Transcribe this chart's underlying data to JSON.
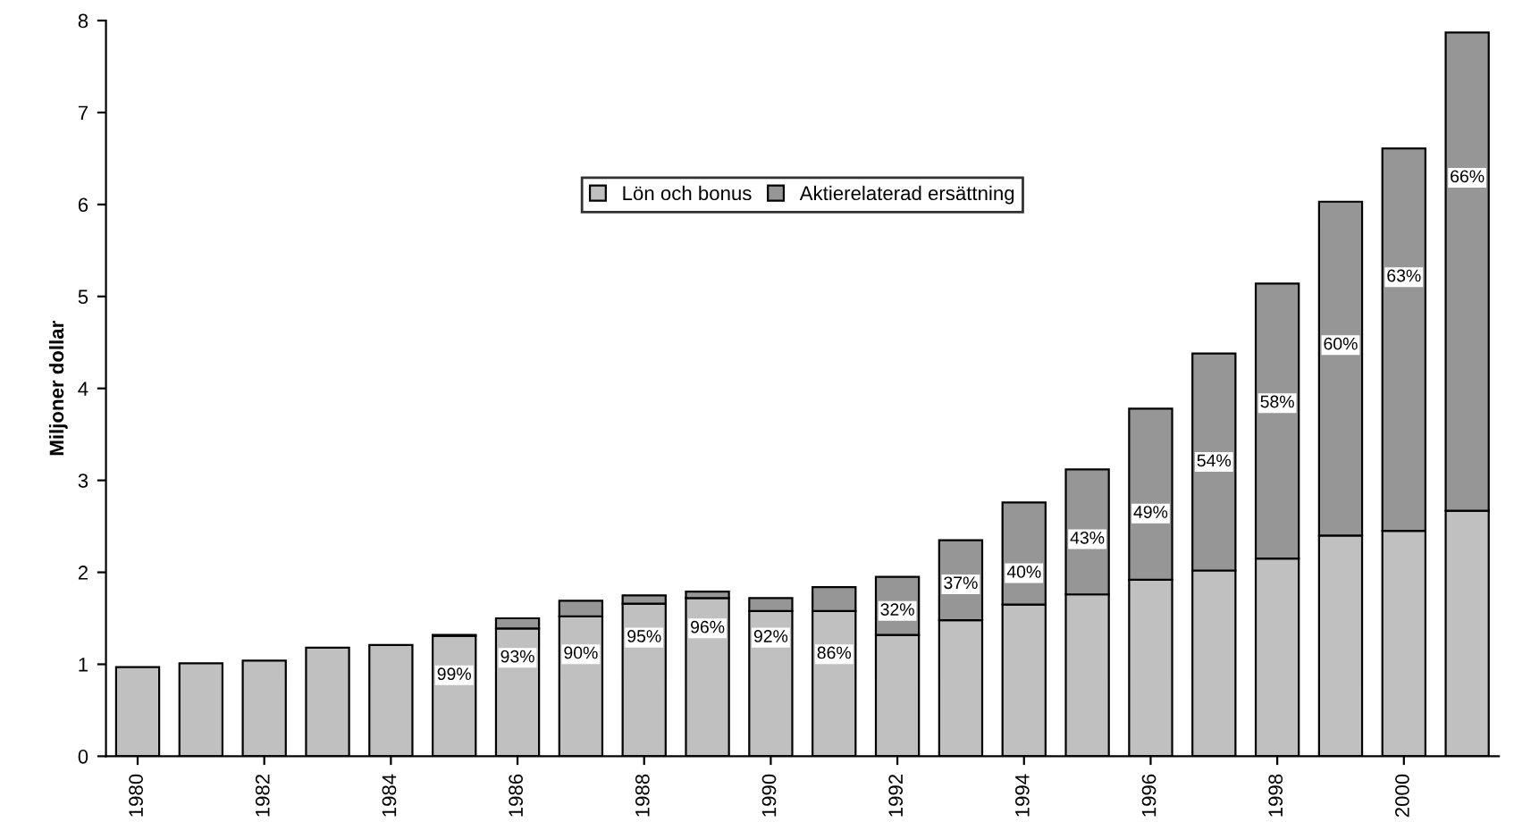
{
  "chart_data": {
    "type": "bar",
    "stacked": true,
    "ylabel": "Miljoner dollar",
    "x": [
      1980,
      1981,
      1982,
      1983,
      1984,
      1985,
      1986,
      1987,
      1988,
      1989,
      1990,
      1991,
      1992,
      1993,
      1994,
      1995,
      1996,
      1997,
      1998,
      1999,
      2000,
      2001
    ],
    "series": [
      {
        "name": "Lön och bonus",
        "color": "#c0c0c0",
        "values": [
          0.97,
          1.01,
          1.04,
          1.18,
          1.21,
          1.31,
          1.39,
          1.52,
          1.66,
          1.72,
          1.58,
          1.58,
          1.32,
          1.48,
          1.65,
          1.76,
          1.92,
          2.02,
          2.15,
          2.4,
          2.45,
          2.67
        ]
      },
      {
        "name": "Aktierelaterad ersättning",
        "color": "#969696",
        "values": [
          null,
          null,
          null,
          null,
          null,
          0.01,
          0.11,
          0.17,
          0.09,
          0.07,
          0.14,
          0.26,
          0.63,
          0.87,
          1.11,
          1.36,
          1.86,
          2.36,
          2.99,
          3.63,
          4.16,
          5.2
        ]
      }
    ],
    "annotations": [
      {
        "text": "99%",
        "x": 1985,
        "y": 0.88
      },
      {
        "text": "93%",
        "x": 1986,
        "y": 1.07
      },
      {
        "text": "90%",
        "x": 1987,
        "y": 1.11
      },
      {
        "text": "95%",
        "x": 1988,
        "y": 1.29
      },
      {
        "text": "96%",
        "x": 1989,
        "y": 1.39
      },
      {
        "text": "92%",
        "x": 1990,
        "y": 1.29
      },
      {
        "text": "86%",
        "x": 1991,
        "y": 1.11
      },
      {
        "text": "32%",
        "x": 1992,
        "y": 1.58
      },
      {
        "text": "37%",
        "x": 1993,
        "y": 1.87
      },
      {
        "text": "40%",
        "x": 1994,
        "y": 1.99
      },
      {
        "text": "43%",
        "x": 1995,
        "y": 2.36
      },
      {
        "text": "49%",
        "x": 1996,
        "y": 2.64
      },
      {
        "text": "54%",
        "x": 1997,
        "y": 3.2
      },
      {
        "text": "58%",
        "x": 1998,
        "y": 3.84
      },
      {
        "text": "60%",
        "x": 1999,
        "y": 4.47
      },
      {
        "text": "63%",
        "x": 2000,
        "y": 5.21
      },
      {
        "text": "66%",
        "x": 2001,
        "y": 6.29
      }
    ],
    "xlim": [
      1979.5,
      2001.5
    ],
    "xticks": [
      1980,
      1982,
      1984,
      1986,
      1988,
      1990,
      1992,
      1994,
      1996,
      1998,
      2000
    ],
    "ylim": [
      0,
      8
    ],
    "yticks": [
      0,
      1,
      2,
      3,
      4,
      5,
      6,
      7,
      8
    ],
    "legend": "top",
    "grid": false
  }
}
